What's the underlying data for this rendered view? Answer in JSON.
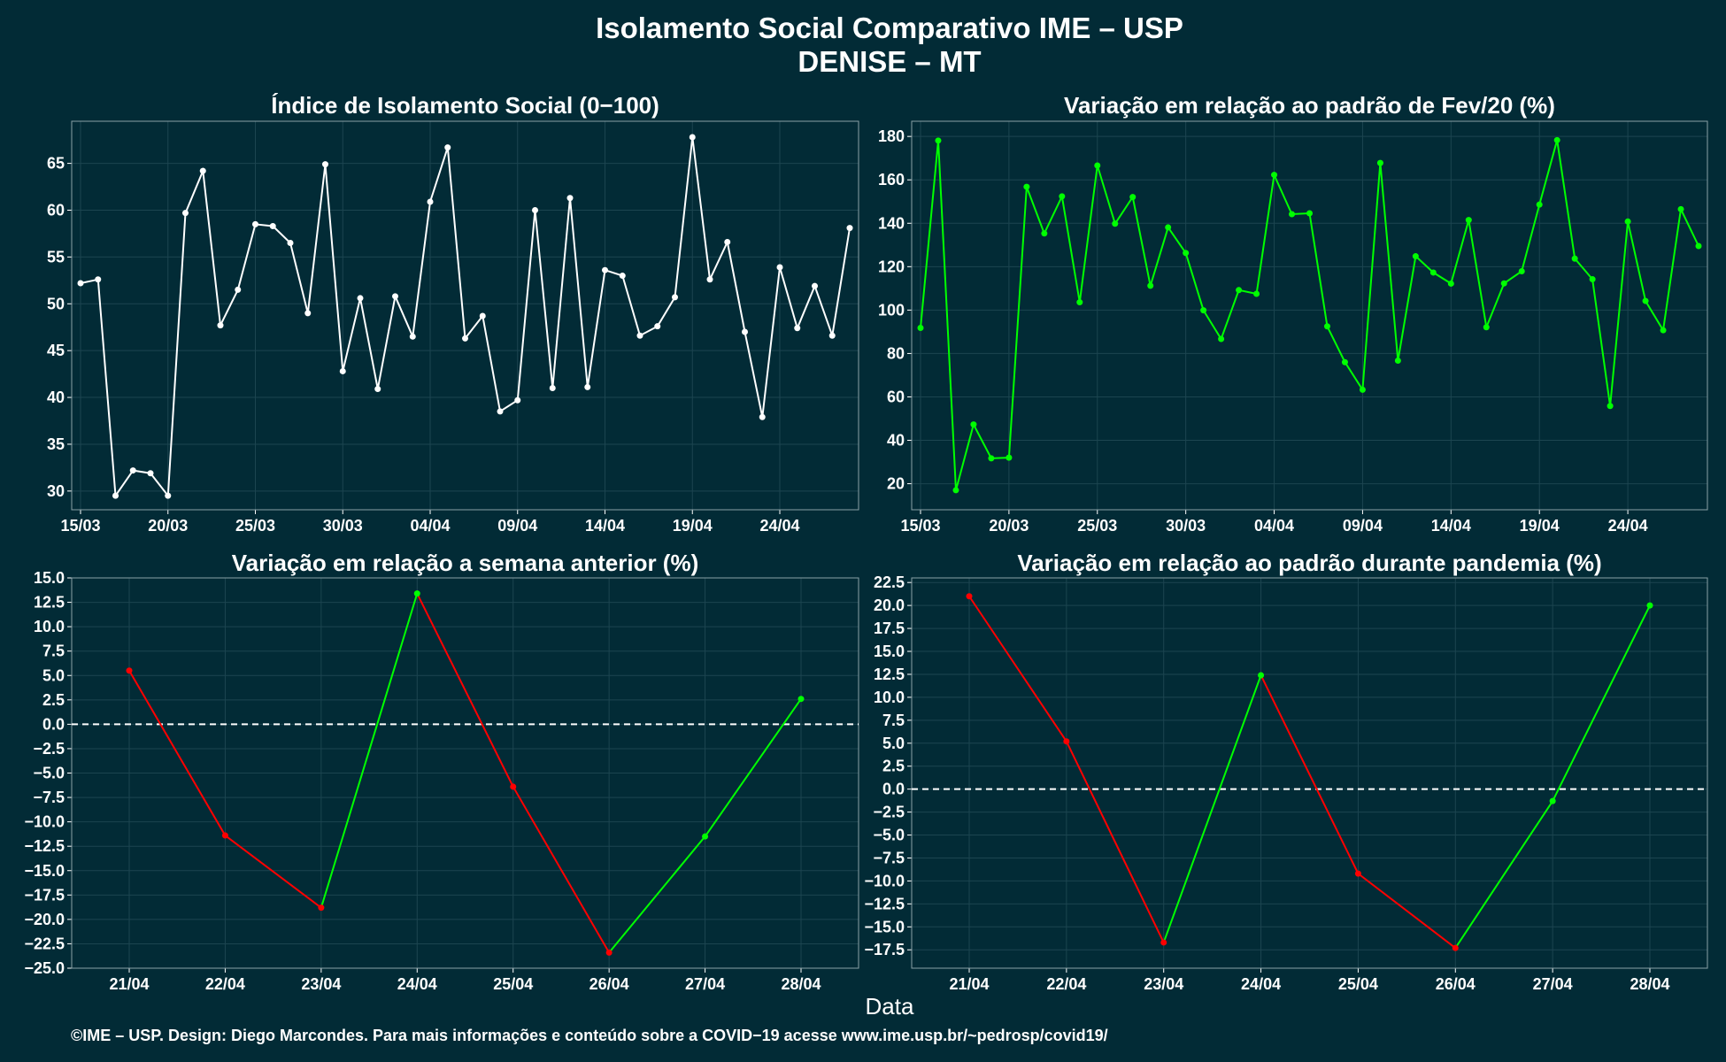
{
  "header": {
    "title_line1": "Isolamento Social Comparativo IME – USP",
    "title_line2": "DENISE – MT"
  },
  "xlabel": "Data",
  "footer": "©IME – USP. Design: Diego Marcondes. Para mais informações e conteúdo sobre a COVID−19 acesse www.ime.usp.br/~pedrosp/covid19/",
  "colors": {
    "background": "#022b36",
    "grid": "#1c4550",
    "white_line": "#ffffff",
    "green": "#00ff00",
    "red": "#ff0000"
  },
  "chart_data": [
    {
      "type": "line",
      "title": "Índice de Isolamento Social (0−100)",
      "x_dates": [
        "15/03",
        "16/03",
        "17/03",
        "18/03",
        "19/03",
        "20/03",
        "21/03",
        "22/03",
        "23/03",
        "24/03",
        "25/03",
        "26/03",
        "27/03",
        "28/03",
        "29/03",
        "30/03",
        "31/03",
        "01/04",
        "02/04",
        "03/04",
        "04/04",
        "05/04",
        "06/04",
        "07/04",
        "08/04",
        "09/04",
        "10/04",
        "11/04",
        "12/04",
        "13/04",
        "14/04",
        "15/04",
        "16/04",
        "17/04",
        "18/04",
        "19/04",
        "20/04",
        "21/04",
        "22/04",
        "23/04",
        "24/04",
        "25/04",
        "26/04",
        "27/04",
        "28/04"
      ],
      "values": [
        52.2,
        52.6,
        29.5,
        32.2,
        31.9,
        29.5,
        59.7,
        64.2,
        47.7,
        51.5,
        58.5,
        58.3,
        56.5,
        49.0,
        64.9,
        42.8,
        50.6,
        40.9,
        50.8,
        46.5,
        60.9,
        66.7,
        46.3,
        48.7,
        38.5,
        39.7,
        60.0,
        41.0,
        61.3,
        41.1,
        53.6,
        53.0,
        46.6,
        47.6,
        50.7,
        67.8,
        52.6,
        56.6,
        47.0,
        37.9,
        53.9,
        47.4,
        51.9,
        46.6,
        58.1
      ],
      "xticks": [
        "15/03",
        "20/03",
        "25/03",
        "30/03",
        "04/04",
        "09/04",
        "14/04",
        "19/04",
        "24/04"
      ],
      "yticks": [
        30,
        35,
        40,
        45,
        50,
        55,
        60,
        65
      ],
      "ylim": [
        28,
        69.5
      ],
      "color": "#ffffff"
    },
    {
      "type": "line",
      "title": "Variação em relação ao padrão de Fev/20 (%)",
      "x_dates": [
        "15/03",
        "16/03",
        "17/03",
        "18/03",
        "19/03",
        "20/03",
        "21/03",
        "22/03",
        "23/03",
        "24/03",
        "25/03",
        "26/03",
        "27/03",
        "28/03",
        "29/03",
        "30/03",
        "31/03",
        "01/04",
        "02/04",
        "03/04",
        "04/04",
        "05/04",
        "06/04",
        "07/04",
        "08/04",
        "09/04",
        "10/04",
        "11/04",
        "12/04",
        "13/04",
        "14/04",
        "15/04",
        "16/04",
        "17/04",
        "18/04",
        "19/04",
        "20/04",
        "21/04",
        "22/04",
        "23/04",
        "24/04",
        "25/04",
        "26/04",
        "27/04",
        "28/04"
      ],
      "values": [
        91.8,
        178.1,
        17.0,
        47.3,
        31.7,
        32.0,
        156.8,
        135.3,
        152.4,
        103.6,
        166.6,
        139.8,
        152.1,
        111.2,
        138.1,
        126.3,
        99.9,
        86.7,
        109.2,
        107.5,
        162.3,
        144.2,
        144.6,
        92.5,
        76.0,
        63.3,
        167.8,
        76.7,
        124.8,
        117.3,
        112.2,
        141.5,
        92.1,
        112.3,
        117.9,
        148.6,
        178.3,
        123.7,
        114.2,
        55.8,
        140.8,
        104.2,
        90.7,
        146.5,
        129.5
      ],
      "xticks": [
        "15/03",
        "20/03",
        "25/03",
        "30/03",
        "04/04",
        "09/04",
        "14/04",
        "19/04",
        "24/04"
      ],
      "yticks": [
        20,
        40,
        60,
        80,
        100,
        120,
        140,
        160,
        180
      ],
      "ylim": [
        8,
        187
      ],
      "color": "#00ff00"
    },
    {
      "type": "line",
      "title": "Variação em relação a semana anterior (%)",
      "categories": [
        "21/04",
        "22/04",
        "23/04",
        "24/04",
        "25/04",
        "26/04",
        "27/04",
        "28/04"
      ],
      "values": [
        5.5,
        -11.4,
        -18.8,
        13.4,
        -6.4,
        -23.4,
        -11.5,
        2.6
      ],
      "yticks": [
        15.0,
        12.5,
        10.0,
        7.5,
        5.0,
        2.5,
        0.0,
        -2.5,
        -5.0,
        -7.5,
        -10.0,
        -12.5,
        -15.0,
        -17.5,
        -20.0,
        -22.5,
        -25.0
      ],
      "ylim": [
        -25.0,
        15.0
      ],
      "reference_line": 0,
      "segment_colors": "green if increasing, red if decreasing"
    },
    {
      "type": "line",
      "title": "Variação em relação ao padrão durante pandemia (%)",
      "categories": [
        "21/04",
        "22/04",
        "23/04",
        "24/04",
        "25/04",
        "26/04",
        "27/04",
        "28/04"
      ],
      "values": [
        21.0,
        5.2,
        -16.7,
        12.4,
        -9.2,
        -17.3,
        -1.3,
        20.0
      ],
      "yticks": [
        22.5,
        20.0,
        17.5,
        15.0,
        12.5,
        10.0,
        7.5,
        5.0,
        2.5,
        0.0,
        -2.5,
        -5.0,
        -7.5,
        -10.0,
        -12.5,
        -15.0,
        -17.5
      ],
      "ylim": [
        -19.5,
        23.0
      ],
      "reference_line": 0,
      "segment_colors": "green if increasing, red if decreasing"
    }
  ]
}
